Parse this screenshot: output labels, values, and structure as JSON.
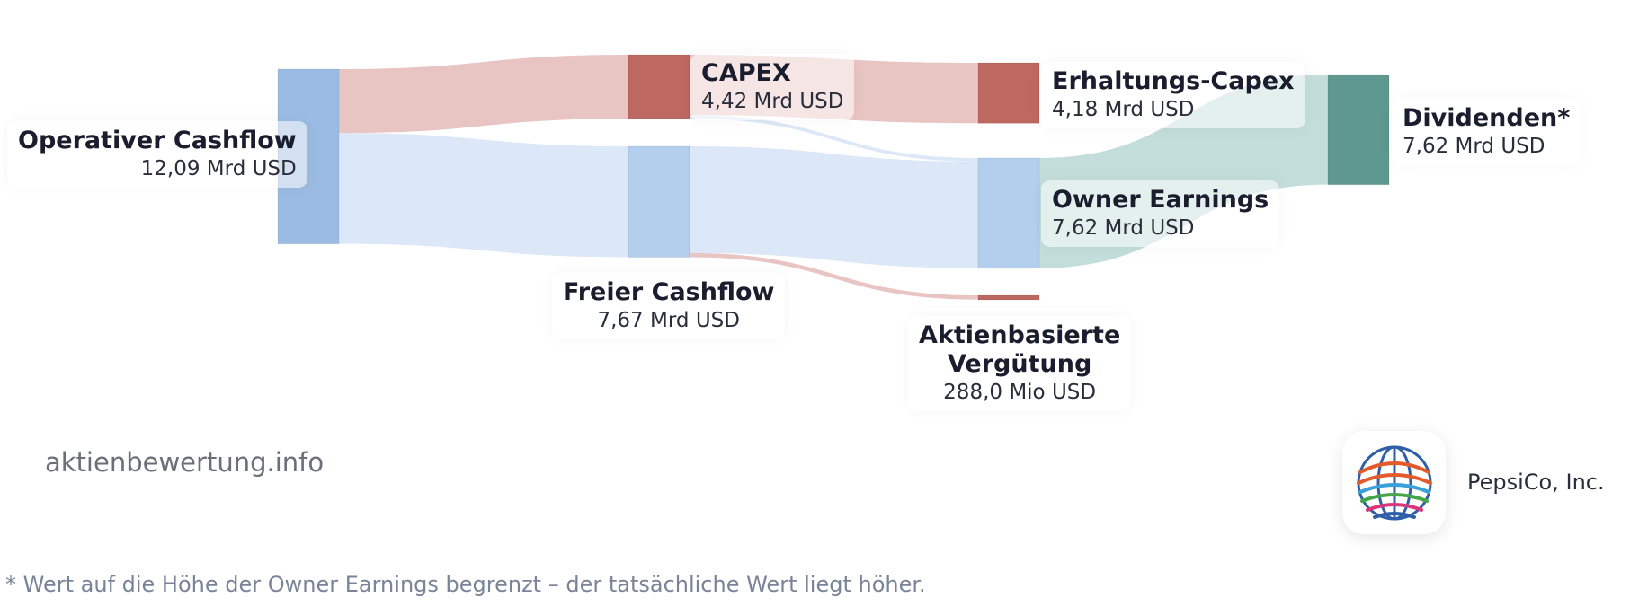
{
  "chart_data": {
    "type": "sankey",
    "unit_note": "Mrd USD",
    "nodes": [
      {
        "id": "ocf",
        "name": "Operativer Cashflow",
        "value_label": "12,09 Mrd USD",
        "value": 12.09,
        "color": "#9bbbe3"
      },
      {
        "id": "capex",
        "name": "CAPEX",
        "value_label": "4,42 Mrd USD",
        "value": 4.42,
        "color": "#bd6860"
      },
      {
        "id": "fcf",
        "name": "Freier Cashflow",
        "value_label": "7,67 Mrd USD",
        "value": 7.67,
        "color": "#b4cfee"
      },
      {
        "id": "mcap",
        "name": "Erhaltungs-Capex",
        "value_label": "4,18 Mrd USD",
        "value": 4.18,
        "color": "#bd6860"
      },
      {
        "id": "oe",
        "name": "Owner Earnings",
        "value_label": "7,62 Mrd USD",
        "value": 7.62,
        "color": "#b4cfee"
      },
      {
        "id": "sbc",
        "name": "Aktienbasierte Vergütung",
        "name_line1": "Aktienbasierte",
        "name_line2": "Vergütung",
        "value_label": "288,0 Mio USD",
        "value": 0.288,
        "color": "#bd6860"
      },
      {
        "id": "div",
        "name": "Dividenden*",
        "value_label": "7,62 Mrd USD",
        "value": 7.62,
        "color": "#5f9891"
      }
    ],
    "links": [
      {
        "source": "ocf",
        "target": "capex",
        "value": 4.42,
        "color": "#e6bfbc"
      },
      {
        "source": "ocf",
        "target": "fcf",
        "value": 7.67,
        "color": "#d8e5f6"
      },
      {
        "source": "capex",
        "target": "mcap",
        "value": 4.18,
        "color": "#e6bfbc"
      },
      {
        "source": "capex",
        "target": "oe",
        "value": 0.24,
        "color": "#d8e5f6"
      },
      {
        "source": "fcf",
        "target": "oe",
        "value": 7.38,
        "color": "#d8e5f6"
      },
      {
        "source": "fcf",
        "target": "sbc",
        "value": 0.29,
        "color": "#e6bfbc"
      },
      {
        "source": "oe",
        "target": "div",
        "value": 7.62,
        "color": "#bcdad6"
      }
    ]
  },
  "watermark": "aktienbewertung.info",
  "company": {
    "name": "PepsiCo, Inc.",
    "logo_icon": "pepsico-globe-icon"
  },
  "footnote": "* Wert auf die Höhe der Owner Earnings begrenzt – der tatsächliche Wert liegt höher."
}
